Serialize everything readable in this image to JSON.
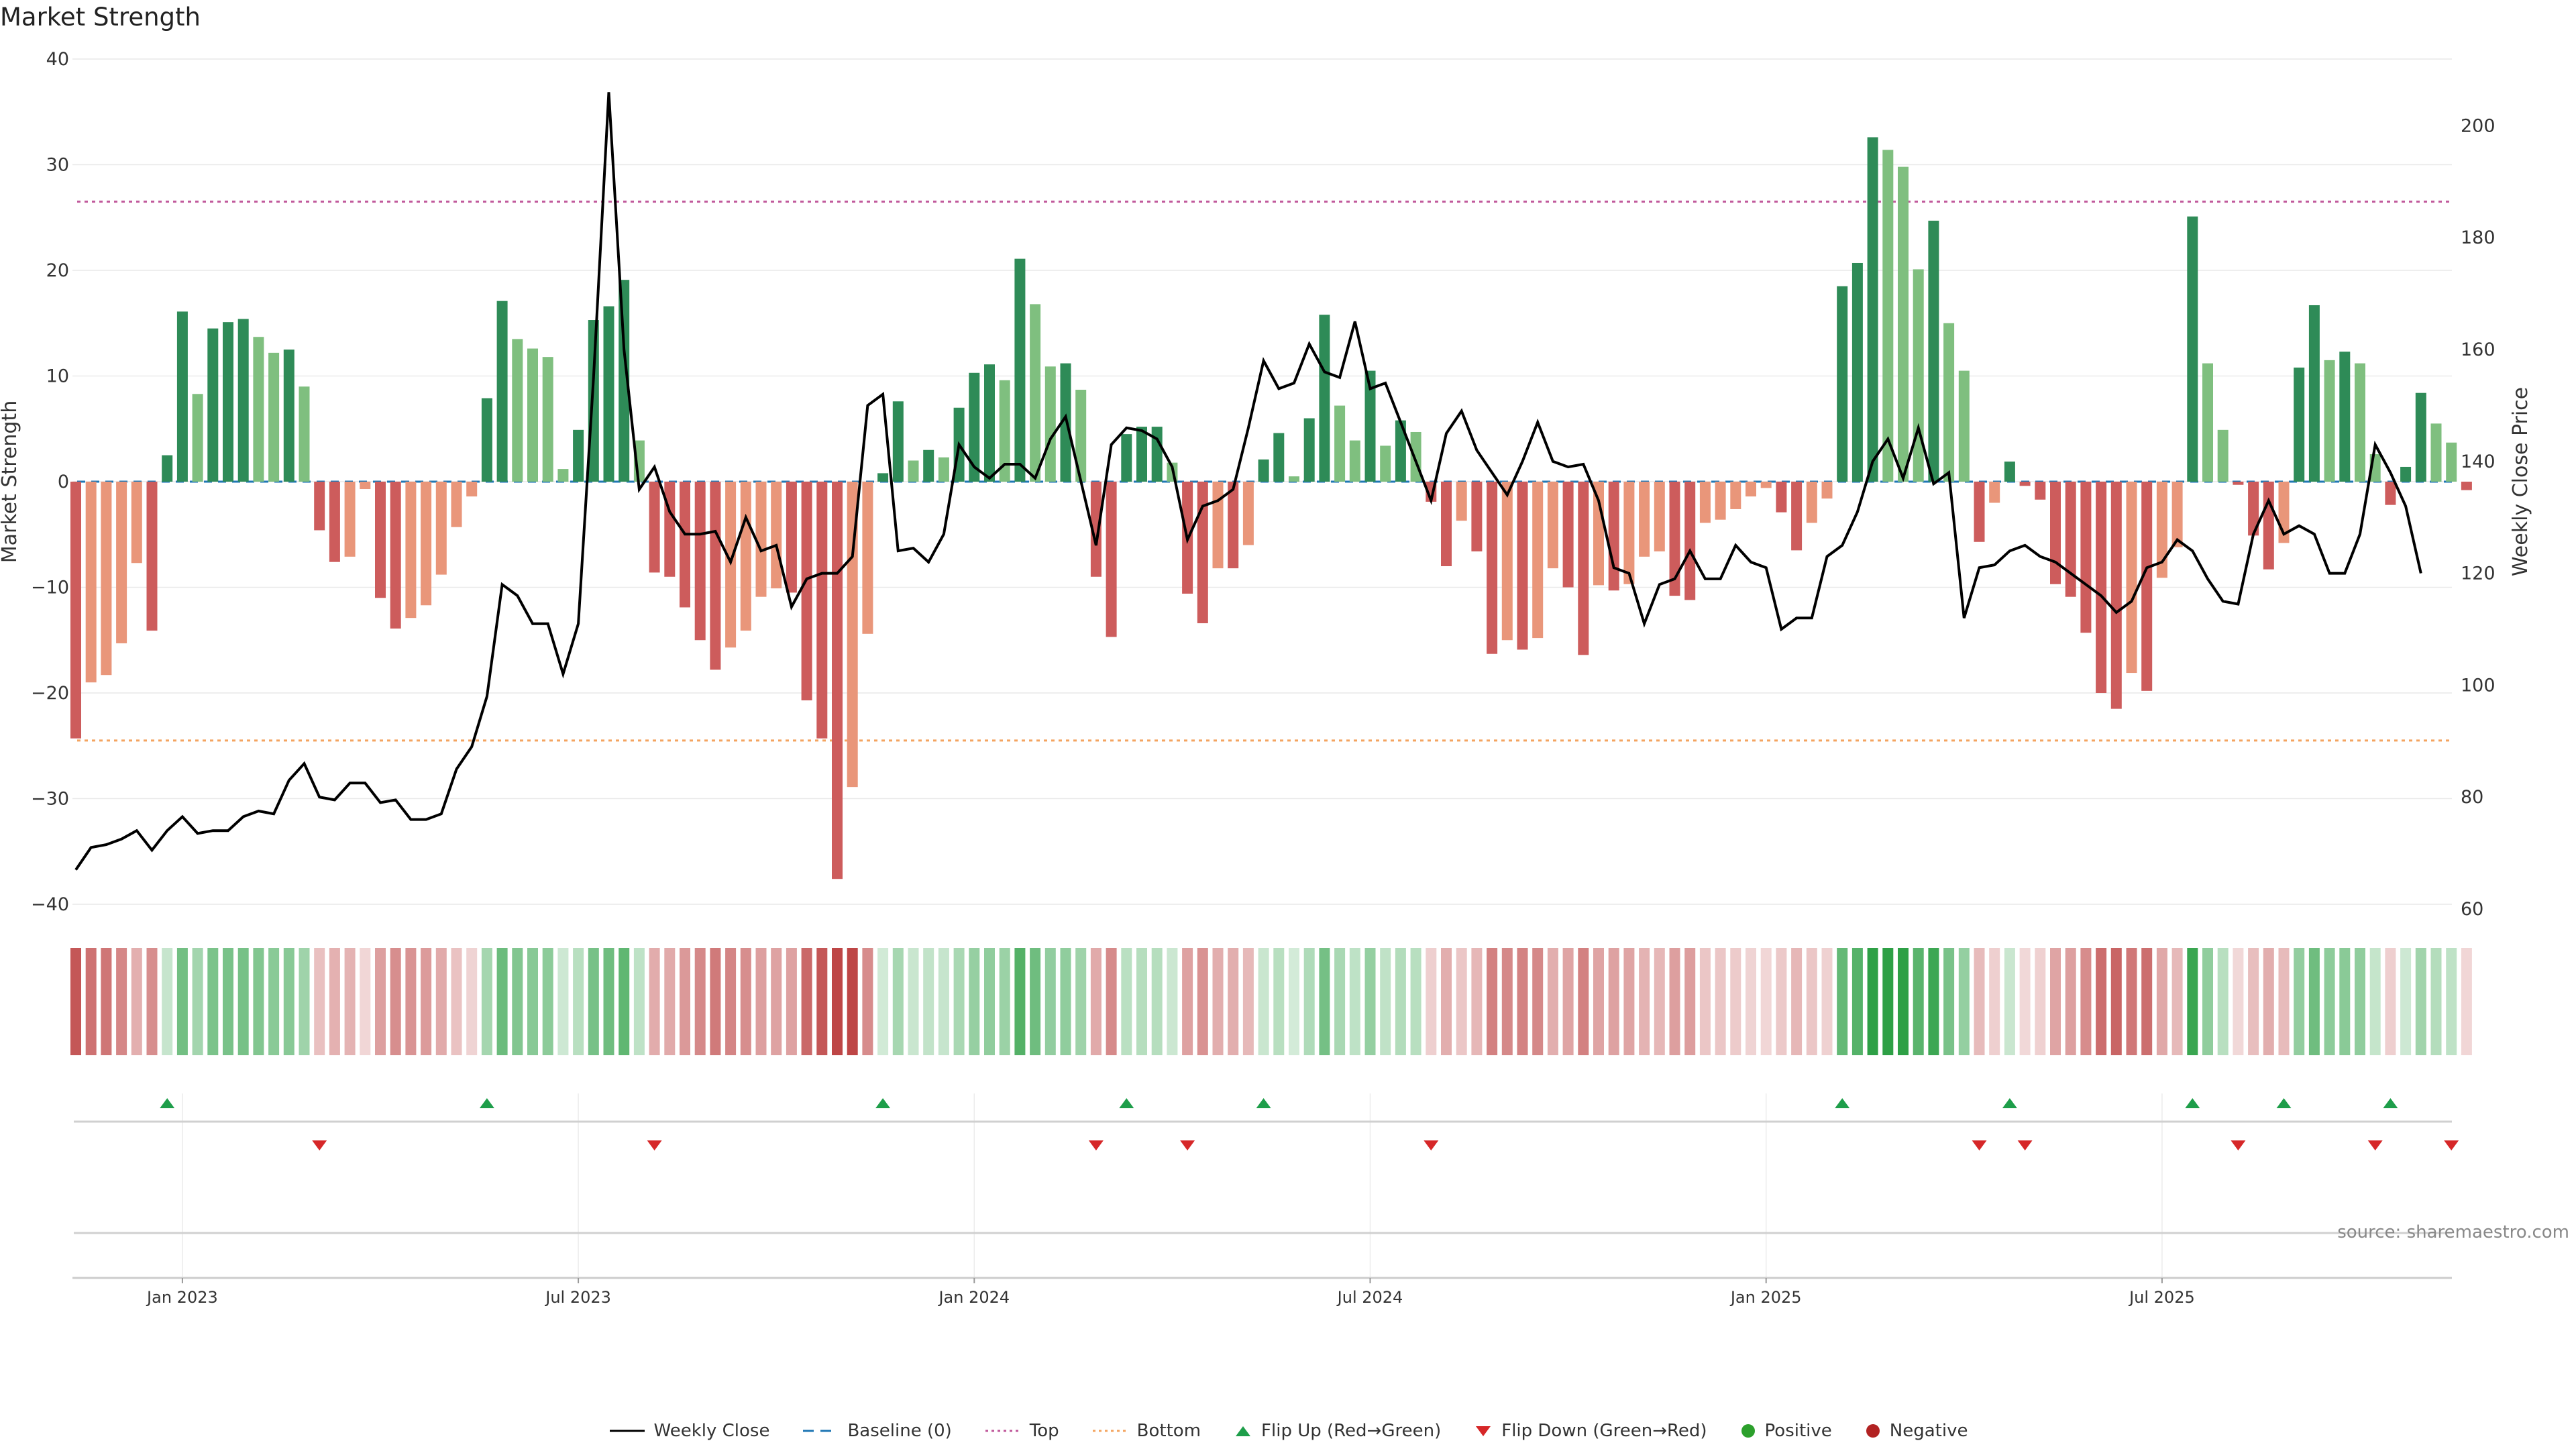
{
  "title": "Market Strength",
  "source": "source: sharemaestro.com",
  "chart_data": {
    "type": "bar",
    "title": "Market Strength",
    "ylabel_left": "Market Strength",
    "ylabel_right": "Weekly Close Price",
    "ylim_left": [
      -40,
      40
    ],
    "ylim_right": [
      60,
      208
    ],
    "yticks_left": [
      "40",
      "30",
      "20",
      "10",
      "0",
      "−10",
      "−20",
      "−30",
      "−40"
    ],
    "yticks_left_values": [
      40,
      30,
      20,
      10,
      0,
      -10,
      -20,
      -30,
      -40
    ],
    "yticks_right": [
      "200",
      "180",
      "160",
      "140",
      "120",
      "100",
      "80",
      "60"
    ],
    "yticks_right_values": [
      200,
      180,
      160,
      140,
      120,
      100,
      80,
      60
    ],
    "x_start": "2022-11-14",
    "x_interval": "weekly",
    "xticks": [
      {
        "label": "Jan 2023",
        "week": 7
      },
      {
        "label": "Jul 2023",
        "week": 33
      },
      {
        "label": "Jan 2024",
        "week": 59
      },
      {
        "label": "Jul 2024",
        "week": 85
      },
      {
        "label": "Jan 2025",
        "week": 111
      },
      {
        "label": "Jul 2025",
        "week": 137
      }
    ],
    "top_line": 26.5,
    "bottom_line": -24.5,
    "strength": [
      -24.3,
      -19,
      -18.3,
      -15.3,
      -7.7,
      -14.1,
      2.5,
      16.1,
      8.3,
      14.5,
      15.1,
      15.4,
      13.7,
      12.2,
      12.5,
      9,
      -4.6,
      -7.6,
      -7.1,
      -0.7,
      -11,
      -13.9,
      -12.9,
      -11.7,
      -8.8,
      -4.3,
      -1.4,
      7.9,
      17.1,
      13.5,
      12.6,
      11.8,
      1.2,
      4.9,
      15.3,
      16.6,
      19.1,
      3.9,
      -8.6,
      -9,
      -11.9,
      -15,
      -17.8,
      -15.7,
      -14.1,
      -10.9,
      -10.1,
      -10.5,
      -20.7,
      -24.3,
      -37.6,
      -28.9,
      -14.4,
      0.8,
      7.6,
      2,
      3,
      2.3,
      7,
      10.3,
      11.1,
      9.6,
      21.1,
      16.8,
      10.9,
      11.2,
      8.7,
      -9,
      -14.7,
      4.5,
      5.2,
      5.2,
      1.8,
      -10.6,
      -13.4,
      -8.2,
      -8.2,
      -6,
      2.1,
      4.6,
      0.5,
      6,
      15.8,
      7.2,
      3.9,
      10.5,
      3.4,
      5.8,
      4.7,
      -1.9,
      -8,
      -3.7,
      -6.6,
      -16.3,
      -15,
      -15.9,
      -14.8,
      -8.2,
      -10,
      -16.4,
      -9.8,
      -10.3,
      -9.7,
      -7.1,
      -6.6,
      -10.8,
      -11.2,
      -3.9,
      -3.6,
      -2.6,
      -1.4,
      -0.6,
      -2.9,
      -6.5,
      -3.9,
      -1.6,
      18.5,
      20.7,
      32.6,
      31.4,
      29.8,
      20.1,
      24.7,
      15,
      10.5,
      -5.7,
      -2,
      1.9,
      -0.4,
      -1.7,
      -9.7,
      -10.9,
      -14.3,
      -20,
      -21.5,
      -18.1,
      -19.8,
      -9.1,
      -6.2,
      25.1,
      11.2,
      4.9,
      -0.3,
      -5.1,
      -8.3,
      -5.8,
      10.8,
      16.7,
      11.5,
      12.3,
      11.2,
      2.6,
      -2.2,
      1.4,
      8.4,
      5.5,
      3.7,
      -0.8
    ],
    "close": [
      67,
      71,
      71.5,
      72.5,
      74,
      70.5,
      74,
      76.5,
      73.5,
      74,
      74,
      76.5,
      77.5,
      77,
      83,
      86,
      80,
      79.5,
      82.5,
      82.5,
      79,
      79.5,
      76,
      76,
      77,
      85,
      89,
      98,
      118,
      116,
      111,
      111,
      102,
      111,
      155,
      206,
      160,
      135,
      139,
      131,
      127,
      127,
      127.5,
      122,
      130,
      124,
      125,
      114,
      119,
      120,
      120,
      123,
      150,
      152,
      124,
      124.5,
      122,
      127,
      143,
      139,
      137,
      139.5,
      139.5,
      137,
      144,
      148,
      136.5,
      125,
      143,
      146,
      145.5,
      144,
      139,
      126,
      132,
      133,
      135,
      146,
      158,
      153,
      154,
      161,
      156,
      155,
      165,
      153,
      154,
      147,
      140,
      133,
      145,
      149,
      142,
      138,
      134,
      140,
      147,
      140,
      139,
      139.5,
      133,
      121,
      120,
      111,
      118,
      119,
      124,
      119,
      119,
      125,
      122,
      121,
      110,
      112,
      112,
      123,
      125,
      131,
      140,
      144,
      137,
      146,
      136,
      138,
      112,
      121,
      121.5,
      124,
      125,
      123,
      122,
      120,
      118,
      116,
      113,
      115,
      121,
      122,
      126,
      124,
      119,
      115,
      114.5,
      127,
      133,
      127,
      128.5,
      127,
      120,
      120,
      127,
      143,
      138,
      132,
      120
    ],
    "flip_up_weeks": [
      6,
      27,
      53,
      69,
      78,
      116,
      127,
      139,
      145,
      152
    ],
    "flip_down_weeks": [
      16,
      38,
      67,
      73,
      89,
      125,
      128,
      142,
      151,
      156
    ],
    "legend": [
      "Weekly Close",
      "Baseline (0)",
      "Top",
      "Bottom",
      "Flip Up (Red→Green)",
      "Flip Down (Green→Red)",
      "Positive",
      "Negative"
    ],
    "colors": {
      "strong_pos": "#2e8b57",
      "weak_pos": "#7fbf7f",
      "strong_neg": "#cd5c5c",
      "weak_neg": "#e9967a",
      "close": "#000000",
      "baseline": "#1f77b4",
      "top": "#c0579a",
      "bottom": "#f4a460",
      "flip_up": "#1e9e4a",
      "flip_down": "#d62728",
      "positive_dot": "#2ca02c",
      "negative_dot": "#b22222"
    }
  }
}
